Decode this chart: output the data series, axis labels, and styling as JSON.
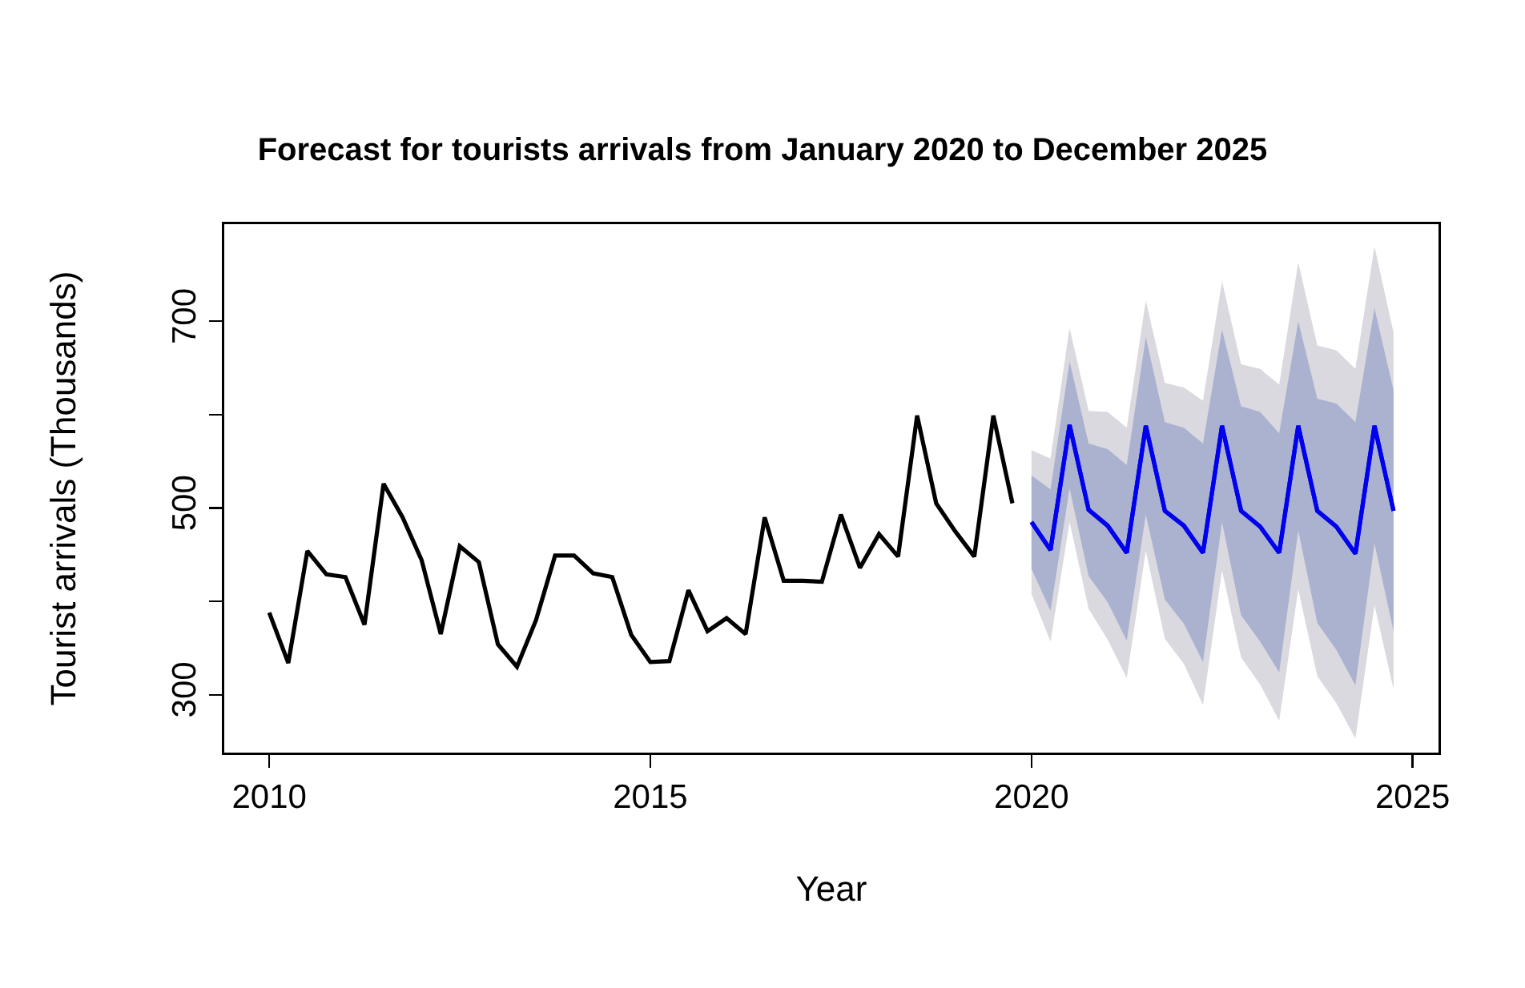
{
  "chart_data": {
    "type": "line",
    "title": "Forecast for tourists arrivals from January 2020 to December 2025",
    "xlabel": "Year",
    "ylabel": "Tourist arrivals (Thousands)",
    "xlim": [
      2009.41,
      2025.34
    ],
    "xticks": [
      2010,
      2015,
      2020,
      2025
    ],
    "ylim": [
      238,
      804
    ],
    "yticks": [
      300,
      {
        "value": 400,
        "label": null
      },
      500,
      {
        "value": 600,
        "label": null
      },
      700
    ],
    "grid": false,
    "marker": "none",
    "line_style": "solid",
    "series": [
      {
        "color": "#000000",
        "x": [
          2010,
          2010.25,
          2010.5,
          2010.75,
          2011,
          2011.25,
          2011.5,
          2011.75,
          2012,
          2012.25,
          2012.5,
          2012.75,
          2013,
          2013.25,
          2013.5,
          2013.75,
          2014,
          2014.25,
          2014.5,
          2014.75,
          2015,
          2015.25,
          2015.5,
          2015.75,
          2016,
          2016.25,
          2016.5,
          2016.75,
          2017,
          2017.25,
          2017.5,
          2017.75,
          2018,
          2018.25,
          2018.5,
          2018.75,
          2019,
          2019.25,
          2019.5,
          2019.75
        ],
        "values": [
          388,
          334,
          454,
          429,
          426,
          375,
          526,
          490,
          444,
          365,
          459,
          442,
          354,
          330,
          380,
          449,
          449,
          430,
          426,
          364,
          335,
          336,
          412,
          368,
          382,
          365,
          490,
          422,
          422,
          421,
          493,
          436,
          472,
          448,
          599,
          505,
          475,
          448,
          599,
          505
        ]
      },
      {
        "color": "#0000ee",
        "x": [
          2020,
          2020.25,
          2020.5,
          2020.75,
          2021,
          2021.25,
          2021.5,
          2021.75,
          2022,
          2022.25,
          2022.5,
          2022.75,
          2023,
          2023.25,
          2023.5,
          2023.75,
          2024,
          2024.25,
          2024.5,
          2024.75
        ],
        "values": [
          485,
          455,
          589,
          498,
          481,
          452,
          588,
          497,
          481,
          452,
          588,
          497,
          480,
          452,
          588,
          497,
          480,
          451,
          588,
          497
        ],
        "upper": [
          562,
          553,
          693,
          604,
          603,
          586,
          722,
          634,
          629,
          615,
          743,
          654,
          649,
          632,
          763,
          674,
          669,
          649,
          780,
          688
        ],
        "lower": [
          408,
          357,
          485,
          392,
          359,
          318,
          454,
          360,
          333,
          289,
          433,
          340,
          311,
          272,
          413,
          320,
          291,
          253,
          396,
          306
        ]
      },
      {
        "color": "#0000ee",
        "x": [
          2020,
          2020.25,
          2020.5,
          2020.75,
          2021,
          2021.25,
          2021.5,
          2021.75,
          2022,
          2022.25,
          2022.5,
          2022.75,
          2023,
          2023.25,
          2023.5,
          2023.75,
          2024,
          2024.25,
          2024.5,
          2024.75
        ],
        "values": [
          485,
          455,
          589,
          498,
          481,
          452,
          588,
          497,
          481,
          452,
          588,
          497,
          480,
          452,
          588,
          497,
          480,
          451,
          588,
          497
        ],
        "upper": [
          535,
          520,
          657,
          569,
          563,
          546,
          683,
          592,
          586,
          569,
          691,
          609,
          603,
          580,
          700,
          617,
          612,
          592,
          714,
          626
        ],
        "lower": [
          435,
          390,
          521,
          427,
          399,
          358,
          493,
          402,
          376,
          335,
          485,
          385,
          357,
          324,
          476,
          377,
          348,
          310,
          462,
          368
        ]
      }
    ]
  }
}
